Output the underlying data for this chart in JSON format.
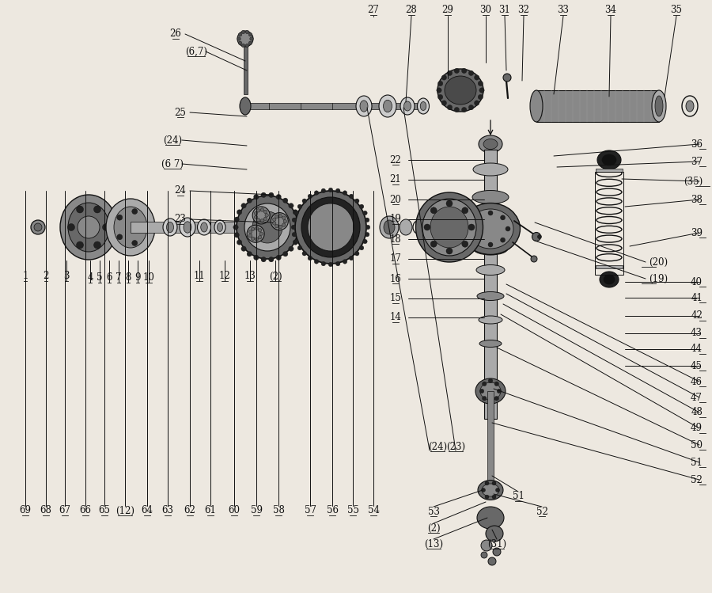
{
  "background_color": "#ede8e0",
  "line_color": "#111111",
  "text_color": "#111111",
  "fig_width": 9.0,
  "fig_height": 7.49,
  "dpi": 100
}
